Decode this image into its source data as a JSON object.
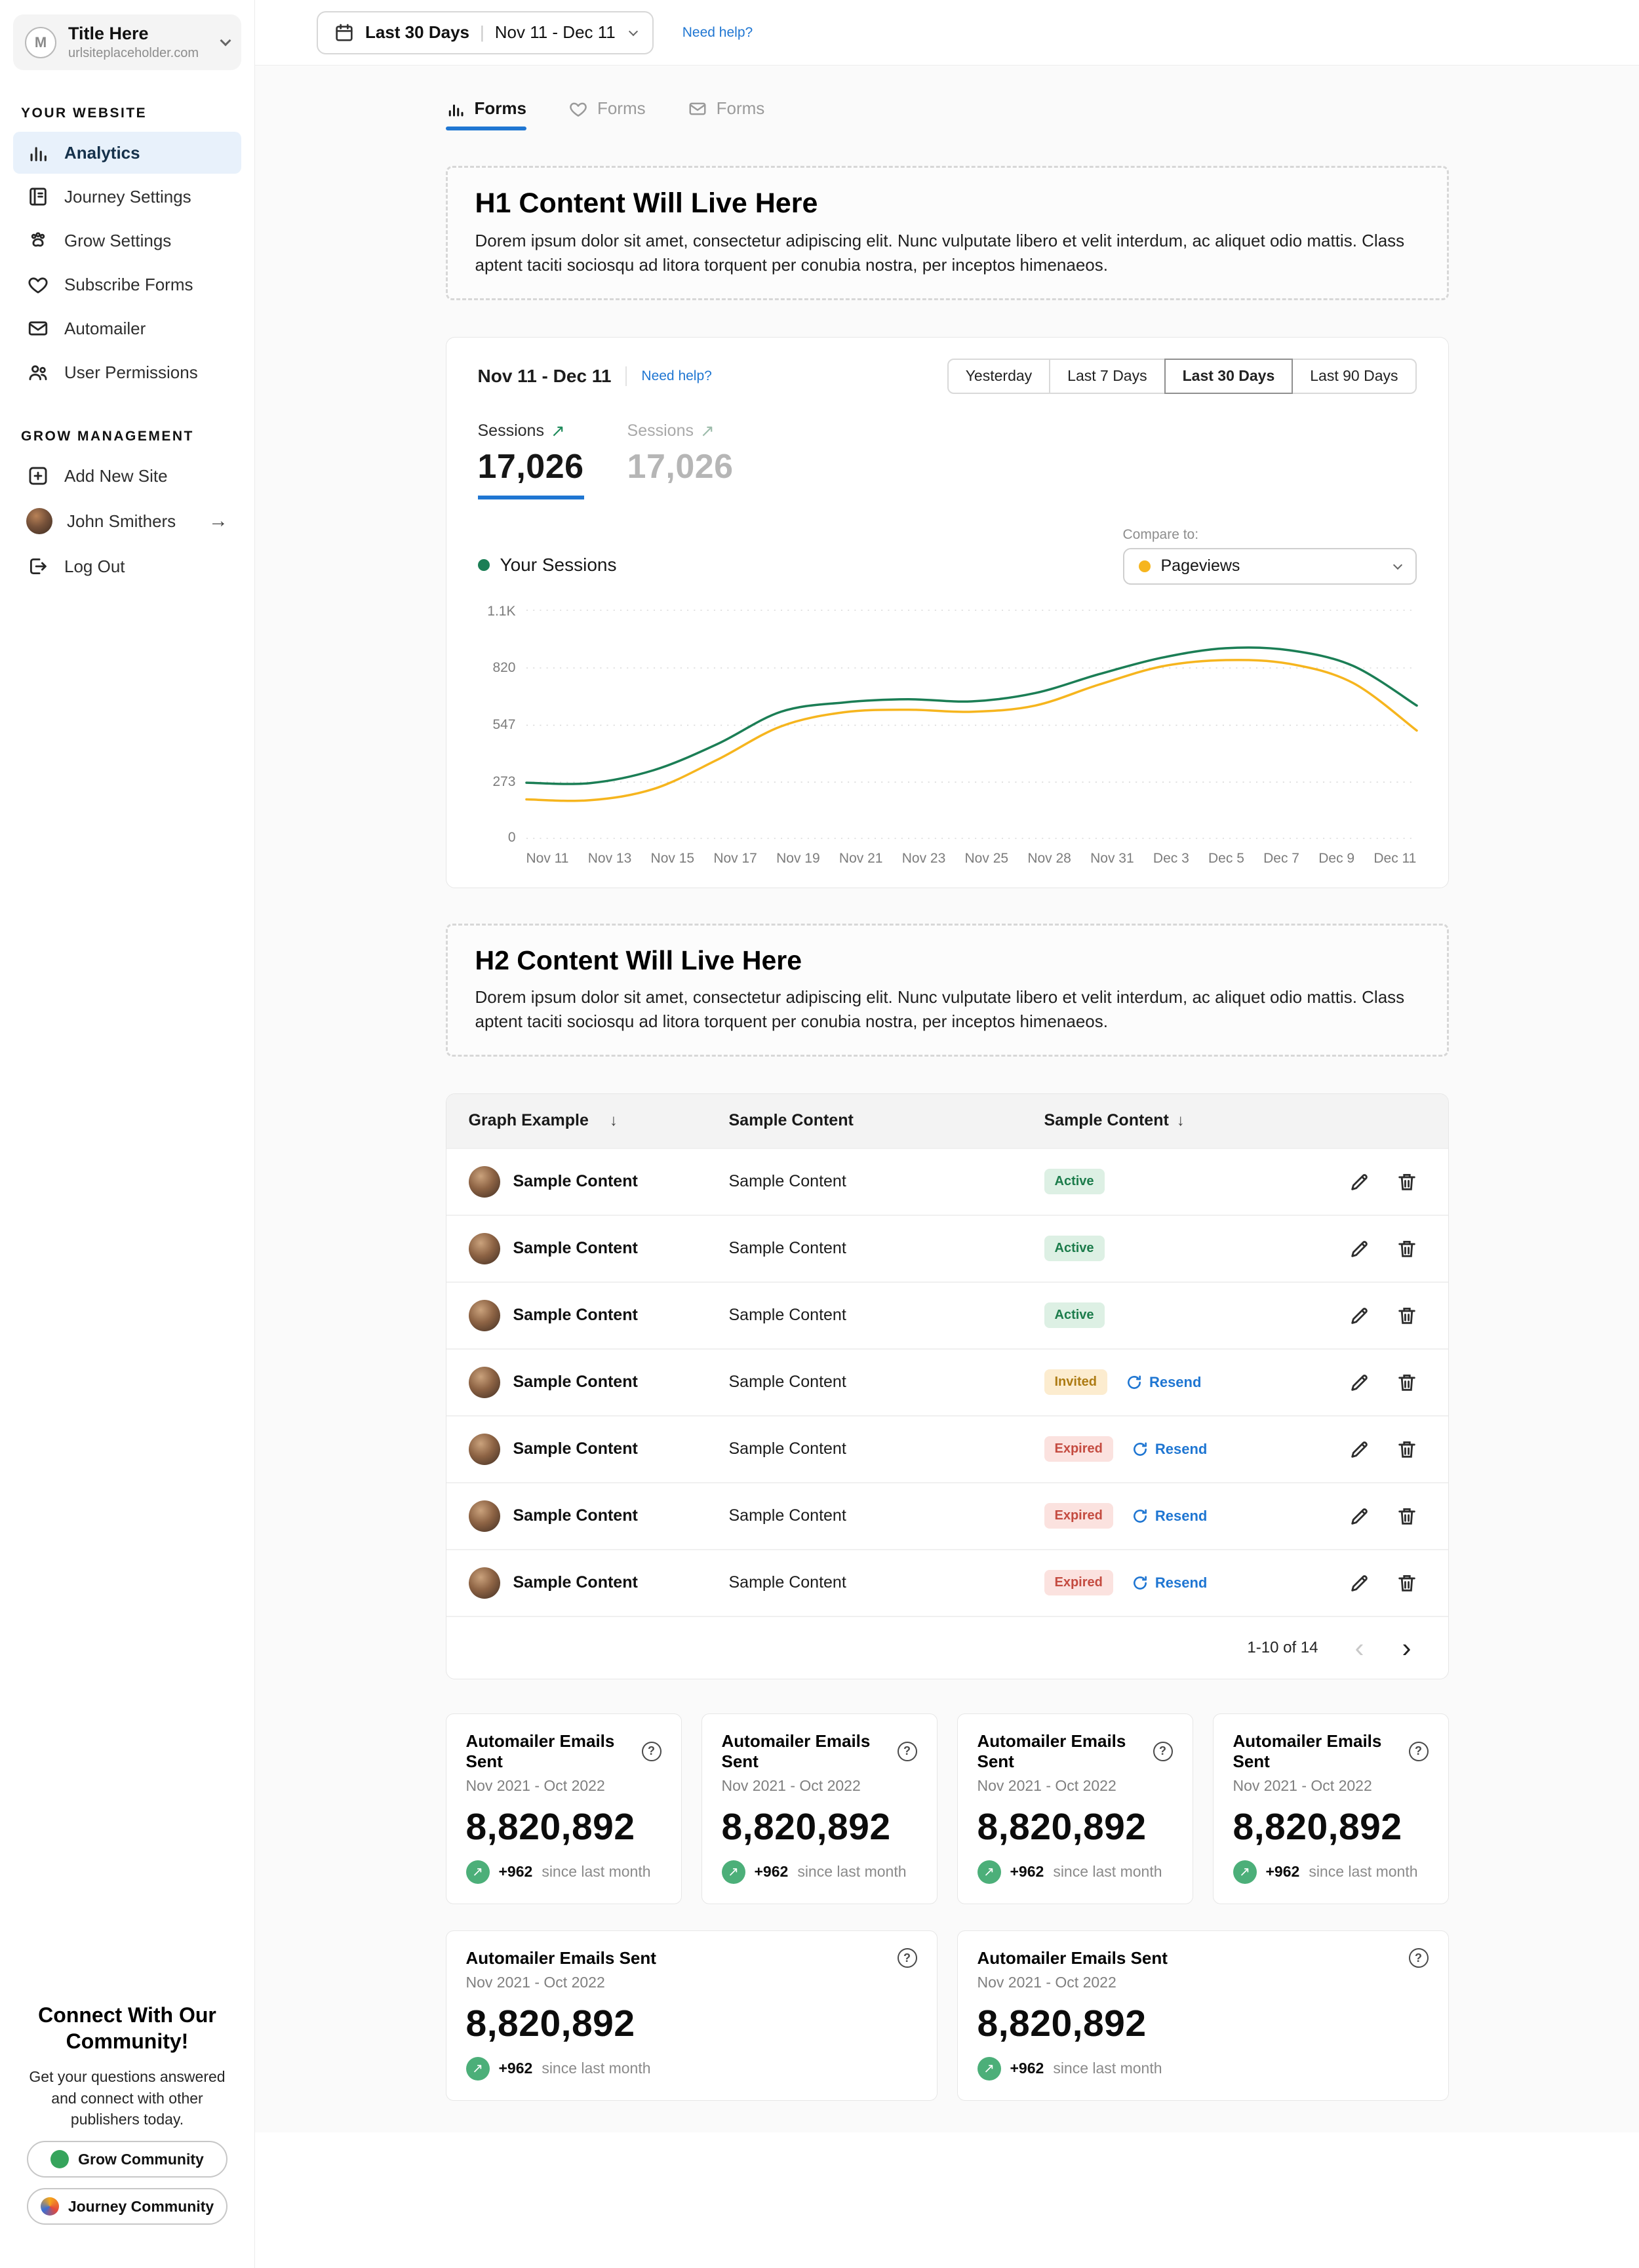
{
  "icons": {
    "trend_up": "↗",
    "sort_down": "↓",
    "chevron_left": "‹",
    "chevron_right": "›",
    "arrow_right": "→",
    "question": "?"
  },
  "sidebar": {
    "account": {
      "initial": "M",
      "title": "Title Here",
      "subtitle": "urlsiteplaceholder.com"
    },
    "sections": [
      {
        "label": "YOUR WEBSITE",
        "items": [
          {
            "label": "Analytics",
            "icon": "analytics-icon",
            "active": true
          },
          {
            "label": "Journey Settings",
            "icon": "journal-icon",
            "active": false
          },
          {
            "label": "Grow Settings",
            "icon": "paw-icon",
            "active": false
          },
          {
            "label": "Subscribe Forms",
            "icon": "heart-icon",
            "active": false
          },
          {
            "label": "Automailer",
            "icon": "mail-icon",
            "active": false
          },
          {
            "label": "User Permissions",
            "icon": "users-icon",
            "active": false
          }
        ]
      },
      {
        "label": "GROW MANAGEMENT",
        "items": [
          {
            "label": "Add New Site",
            "icon": "add-site-icon",
            "active": false
          },
          {
            "label": "John Smithers",
            "icon": "user-avatar",
            "active": false
          },
          {
            "label": "Log Out",
            "icon": "logout-icon",
            "active": false
          }
        ]
      }
    ],
    "community": {
      "title": "Connect With Our Community!",
      "body": "Get your questions answered and connect with other publishers today.",
      "buttons": [
        {
          "label": "Grow Community"
        },
        {
          "label": "Journey Community"
        }
      ]
    }
  },
  "topbar": {
    "range_label": "Last 30 Days",
    "range_sep": "|",
    "range_dates": "Nov 11 - Dec 11",
    "help_link": "Need help?"
  },
  "tabs": [
    {
      "label": "Forms",
      "active": true
    },
    {
      "label": "Forms",
      "active": false
    },
    {
      "label": "Forms",
      "active": false
    }
  ],
  "h1_block": {
    "title": "H1 Content Will Live Here",
    "body": "Dorem ipsum dolor sit amet, consectetur adipiscing elit. Nunc vulputate libero et velit interdum, ac aliquet odio mattis. Class aptent taciti sociosqu ad litora torquent per conubia nostra, per inceptos himenaeos."
  },
  "chart_card": {
    "date_range": "Nov 11 - Dec 11",
    "help_link": "Need help?",
    "range_buttons": [
      "Yesterday",
      "Last 7 Days",
      "Last 30 Days",
      "Last 90 Days"
    ],
    "active_range": "Last 30 Days",
    "metrics": [
      {
        "label": "Sessions",
        "value": "17,026",
        "active": true
      },
      {
        "label": "Sessions",
        "value": "17,026",
        "active": false
      }
    ],
    "legend_label": "Your Sessions",
    "compare_label": "Compare to:",
    "compare_value": "Pageviews",
    "chart_data": {
      "type": "line",
      "x": [
        "Nov 11",
        "Nov 13",
        "Nov 15",
        "Nov 17",
        "Nov 19",
        "Nov 21",
        "Nov 23",
        "Nov 25",
        "Nov 28",
        "Nov 31",
        "Dec 3",
        "Dec 5",
        "Dec 7",
        "Dec 9",
        "Dec 11"
      ],
      "series": [
        {
          "name": "Your Sessions",
          "color": "#1b7e55",
          "values": [
            270,
            268,
            330,
            455,
            610,
            655,
            670,
            660,
            700,
            790,
            870,
            915,
            905,
            830,
            640
          ]
        },
        {
          "name": "Pageviews",
          "color": "#f6b51e",
          "values": [
            190,
            186,
            240,
            380,
            540,
            608,
            620,
            610,
            640,
            740,
            828,
            858,
            840,
            748,
            520
          ]
        }
      ],
      "ylim": [
        0,
        1100
      ],
      "yticks": [
        "1.1K",
        "820",
        "547",
        "273",
        "0"
      ],
      "grid": "dotted-horizontal",
      "legend_position": "top-left"
    }
  },
  "h2_block": {
    "title": "H2 Content Will Live Here",
    "body": "Dorem ipsum dolor sit amet, consectetur adipiscing elit. Nunc vulputate libero et velit interdum, ac aliquet odio mattis. Class aptent taciti sociosqu ad litora torquent per conubia nostra, per inceptos himenaeos."
  },
  "table": {
    "columns": [
      {
        "label": "Graph Example",
        "sortable": true
      },
      {
        "label": "Sample Content",
        "sortable": false
      },
      {
        "label": "Sample Content",
        "sortable": true
      }
    ],
    "resend_label": "Resend",
    "rows": [
      {
        "name": "Sample Content",
        "content": "Sample Content",
        "status": "Active",
        "resend": false
      },
      {
        "name": "Sample Content",
        "content": "Sample Content",
        "status": "Active",
        "resend": false
      },
      {
        "name": "Sample Content",
        "content": "Sample Content",
        "status": "Active",
        "resend": false
      },
      {
        "name": "Sample Content",
        "content": "Sample Content",
        "status": "Invited",
        "resend": true
      },
      {
        "name": "Sample Content",
        "content": "Sample Content",
        "status": "Expired",
        "resend": true
      },
      {
        "name": "Sample Content",
        "content": "Sample Content",
        "status": "Expired",
        "resend": true
      },
      {
        "name": "Sample Content",
        "content": "Sample Content",
        "status": "Expired",
        "resend": true
      }
    ],
    "pagination": {
      "label": "1-10  of  14"
    }
  },
  "stat_cards": [
    {
      "title": "Automailer Emails Sent",
      "period": "Nov 2021 - Oct 2022",
      "value": "8,820,892",
      "delta": "+962",
      "delta_note": "since last month"
    },
    {
      "title": "Automailer Emails Sent",
      "period": "Nov 2021 - Oct 2022",
      "value": "8,820,892",
      "delta": "+962",
      "delta_note": "since last month"
    },
    {
      "title": "Automailer Emails Sent",
      "period": "Nov 2021 - Oct 2022",
      "value": "8,820,892",
      "delta": "+962",
      "delta_note": "since last month"
    },
    {
      "title": "Automailer Emails Sent",
      "period": "Nov 2021 - Oct 2022",
      "value": "8,820,892",
      "delta": "+962",
      "delta_note": "since last month"
    },
    {
      "title": "Automailer Emails Sent",
      "period": "Nov 2021 - Oct 2022",
      "value": "8,820,892",
      "delta": "+962",
      "delta_note": "since last month"
    },
    {
      "title": "Automailer Emails Sent",
      "period": "Nov 2021 - Oct 2022",
      "value": "8,820,892",
      "delta": "+962",
      "delta_note": "since last month"
    }
  ]
}
